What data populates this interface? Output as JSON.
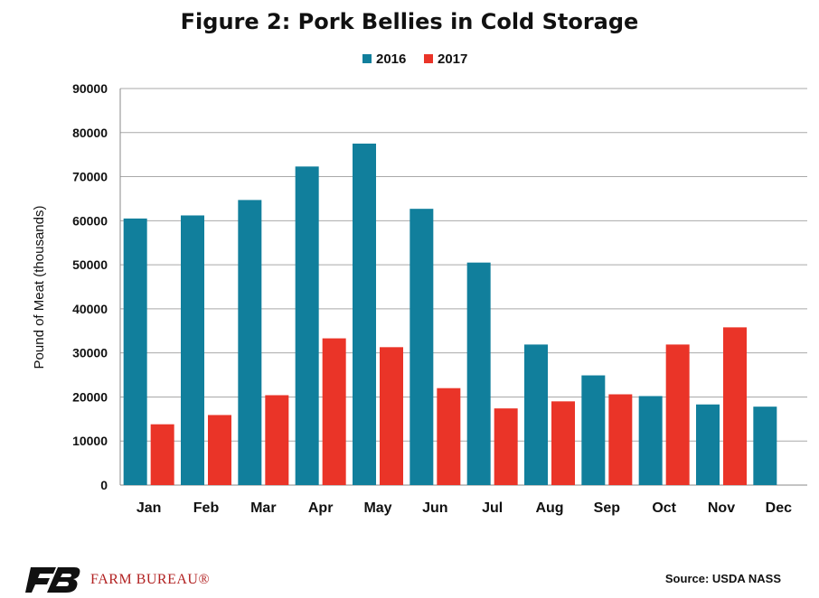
{
  "colors": {
    "s2016": "#117f9c",
    "s2017": "#ea3428",
    "grid": "#a9a9a9",
    "axis": "#888888"
  },
  "chart_data": {
    "type": "bar",
    "title": "Figure 2: Pork Bellies in Cold Storage",
    "xlabel": "",
    "ylabel": "Pound of Meat (thousands)",
    "ylim": [
      0,
      90000
    ],
    "yticks": [
      0,
      10000,
      20000,
      30000,
      40000,
      50000,
      60000,
      70000,
      80000,
      90000
    ],
    "grid": true,
    "legend": "top-center",
    "categories": [
      "Jan",
      "Feb",
      "Mar",
      "Apr",
      "May",
      "Jun",
      "Jul",
      "Aug",
      "Sep",
      "Oct",
      "Nov",
      "Dec"
    ],
    "series": [
      {
        "name": "2016",
        "color": "#117f9c",
        "values": [
          60500,
          61200,
          64700,
          72300,
          77500,
          62700,
          50500,
          31900,
          24900,
          20200,
          18300,
          17800
        ]
      },
      {
        "name": "2017",
        "color": "#ea3428",
        "values": [
          13800,
          15900,
          20400,
          33300,
          31300,
          22000,
          17400,
          19000,
          20600,
          31900,
          35800,
          null
        ]
      }
    ]
  },
  "footer": {
    "logo_icon": "farm-bureau-fb-logo",
    "logo_text": "FARM BUREAU®",
    "source": "Source: USDA NASS"
  }
}
